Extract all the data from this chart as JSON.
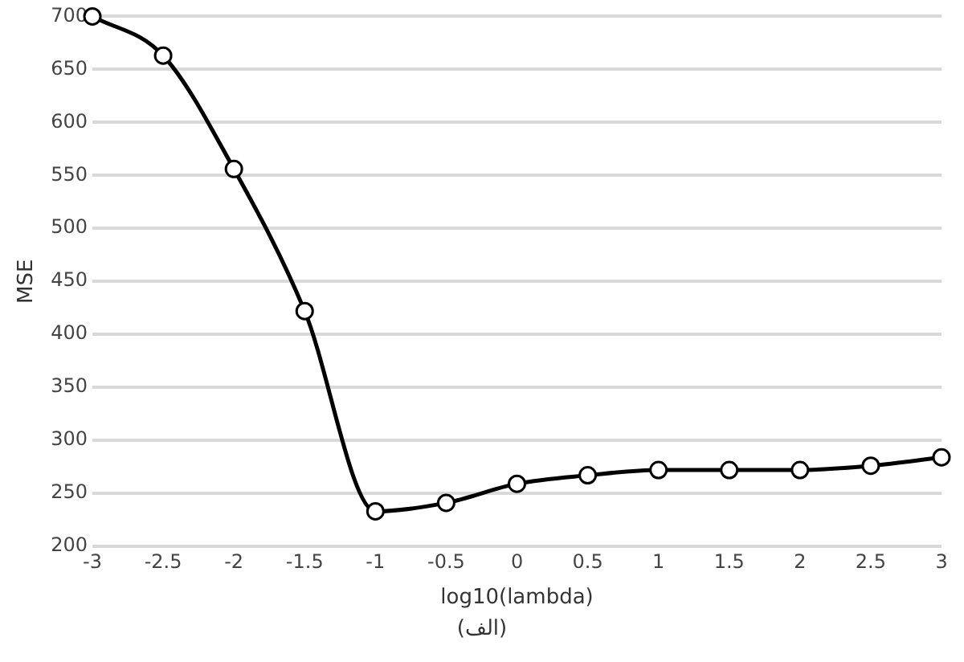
{
  "chart_data": {
    "type": "line",
    "xlabel": "log10(lambda)",
    "ylabel": "MSE",
    "annotations": [
      "(الف)"
    ],
    "x": [
      -3,
      -2.5,
      -2,
      -1.5,
      -1,
      -0.5,
      0,
      0.5,
      1,
      1.5,
      2,
      2.5,
      3
    ],
    "series": [
      {
        "color": "#000000",
        "values": [
          700,
          663,
          556,
          422,
          233,
          241,
          259,
          267,
          272,
          272,
          272,
          276,
          284
        ]
      }
    ],
    "xlim": [
      -3,
      3
    ],
    "xticks": [
      -3,
      -2.5,
      -2,
      -1.5,
      -1,
      -0.5,
      0,
      0.5,
      1,
      1.5,
      2,
      2.5,
      3
    ],
    "ylim": [
      200,
      700
    ],
    "yticks": [
      200,
      250,
      300,
      350,
      400,
      450,
      500,
      550,
      600,
      650,
      700
    ],
    "grid": "y",
    "legend": false,
    "marker": "circle",
    "line_style": "solid"
  }
}
